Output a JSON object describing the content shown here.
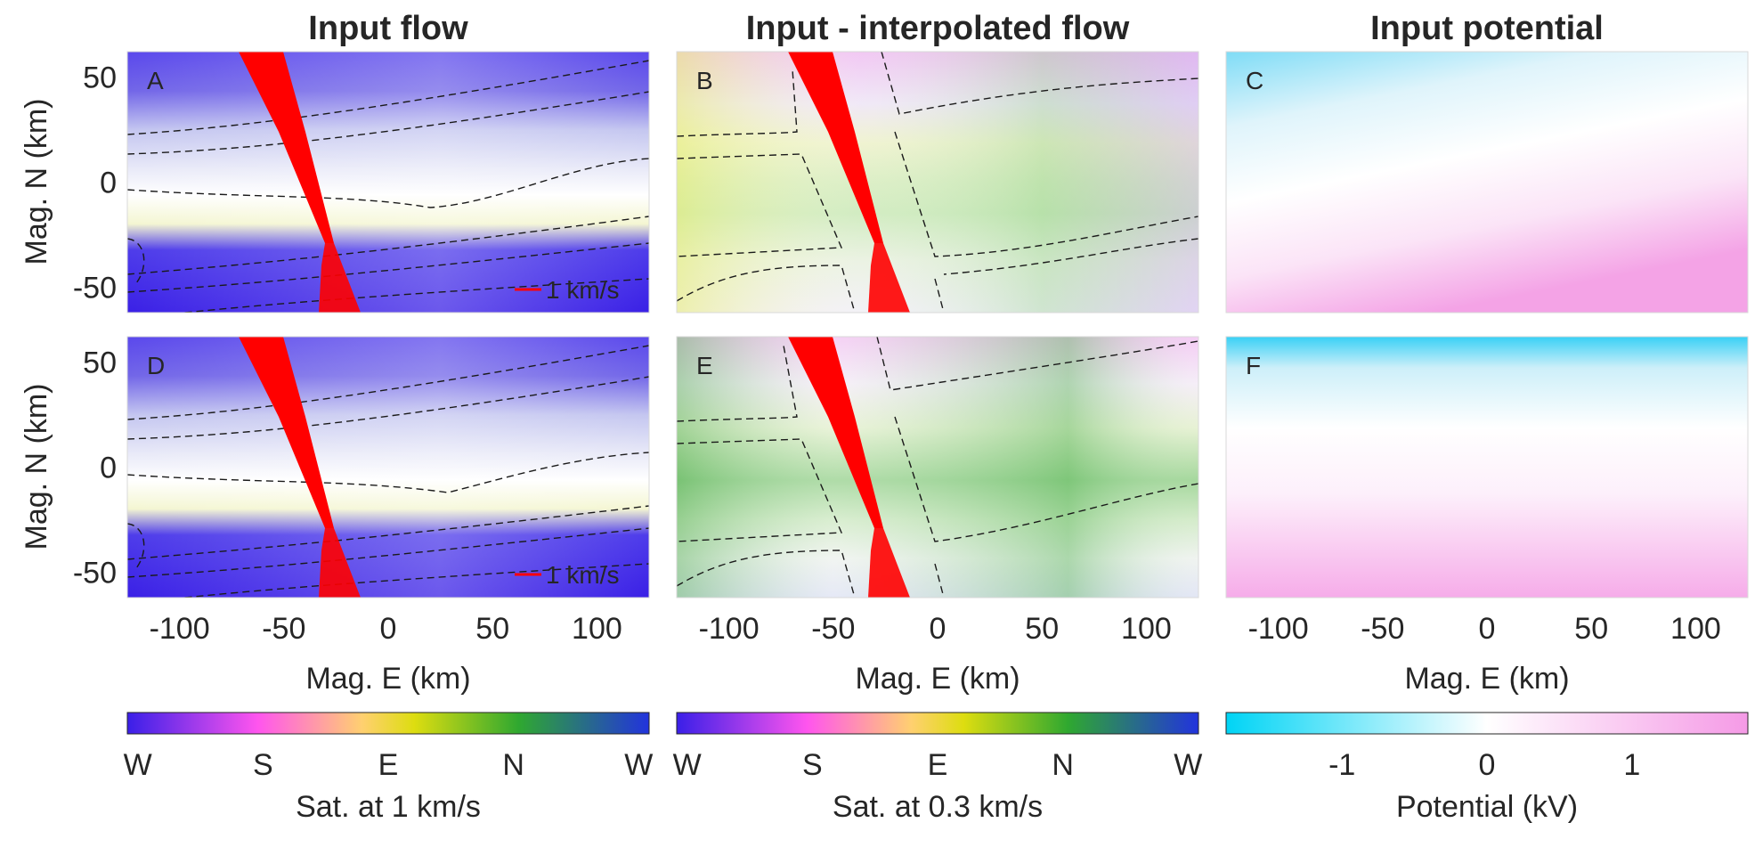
{
  "chart_data": [
    {
      "type": "heatmap",
      "panel": "A",
      "title": "Input flow",
      "ylabel": "Mag. N (km)",
      "xlabel": "",
      "xlim": [
        -125,
        125
      ],
      "ylim": [
        -62,
        62
      ],
      "yticks": [
        50,
        0,
        -50
      ],
      "xticks": [],
      "colormap": "cyclic-direction",
      "scale_arrow_label": "1 km/s",
      "dominant_colors": [
        "#3a1fe8",
        "#c8ccef",
        "#ffffff",
        "#f2f3cc"
      ]
    },
    {
      "type": "heatmap",
      "panel": "B",
      "title": "Input - interpolated flow",
      "xlabel": "",
      "xlim": [
        -125,
        125
      ],
      "ylim": [
        -62,
        62
      ],
      "xticks": [],
      "colormap": "cyclic-direction",
      "dominant_colors": [
        "#f7b8f0",
        "#e7eec4",
        "#b9e0a6",
        "#d8f0b8"
      ]
    },
    {
      "type": "heatmap",
      "panel": "C",
      "title": "Input potential",
      "xlabel": "",
      "xlim": [
        -125,
        125
      ],
      "ylim": [
        -62,
        62
      ],
      "xticks": [],
      "colormap": "diverging-potential",
      "dominant_colors": [
        "#8ee0f5",
        "#ffffff",
        "#f6a8e8"
      ]
    },
    {
      "type": "heatmap",
      "panel": "D",
      "title": "",
      "ylabel": "Mag. N (km)",
      "xlabel": "Mag. E (km)",
      "xlim": [
        -125,
        125
      ],
      "ylim": [
        -62,
        62
      ],
      "yticks": [
        50,
        0,
        -50
      ],
      "xticks": [
        -100,
        -50,
        0,
        50,
        100
      ],
      "colormap": "cyclic-direction",
      "scale_arrow_label": "1 km/s",
      "dominant_colors": [
        "#3a1fe8",
        "#c8ccef",
        "#ffffff",
        "#e6efc4"
      ]
    },
    {
      "type": "heatmap",
      "panel": "E",
      "title": "",
      "xlabel": "Mag. E (km)",
      "xlim": [
        -125,
        125
      ],
      "ylim": [
        -62,
        62
      ],
      "xticks": [
        -100,
        -50,
        0,
        50,
        100
      ],
      "colormap": "cyclic-direction",
      "dominant_colors": [
        "#f7c4f2",
        "#dff0c8",
        "#6cc06a",
        "#d8eec4"
      ]
    },
    {
      "type": "heatmap",
      "panel": "F",
      "title": "",
      "xlabel": "Mag. E (km)",
      "xlim": [
        -125,
        125
      ],
      "ylim": [
        -62,
        62
      ],
      "xticks": [
        -100,
        -50,
        0,
        50,
        100
      ],
      "colormap": "diverging-potential",
      "dominant_colors": [
        "#5ad5f5",
        "#ffffff",
        "#f8b4ec"
      ]
    }
  ],
  "colorbars": [
    {
      "label": "Sat. at 1 km/s",
      "tick_labels": [
        "W",
        "S",
        "E",
        "N",
        "W"
      ],
      "colors": [
        "#3a1fe8",
        "#ff55ee",
        "#ffd070",
        "#dddd10",
        "#2fa830",
        "#2233dd"
      ]
    },
    {
      "label": "Sat. at 0.3 km/s",
      "tick_labels": [
        "W",
        "S",
        "E",
        "N",
        "W"
      ],
      "colors": [
        "#3a1fe8",
        "#ff55ee",
        "#ffd070",
        "#dddd10",
        "#2fa830",
        "#2233dd"
      ]
    },
    {
      "label": "Potential (kV)",
      "tick_labels": [
        "-1",
        "0",
        "1"
      ],
      "tick_values": [
        -1,
        0,
        1
      ],
      "range": [
        -1.8,
        1.8
      ],
      "colors": [
        "#00d4f5",
        "#ffffff",
        "#f59ae6"
      ]
    }
  ],
  "contour_color": "#1a1a1a",
  "track_color": "#ff0000"
}
